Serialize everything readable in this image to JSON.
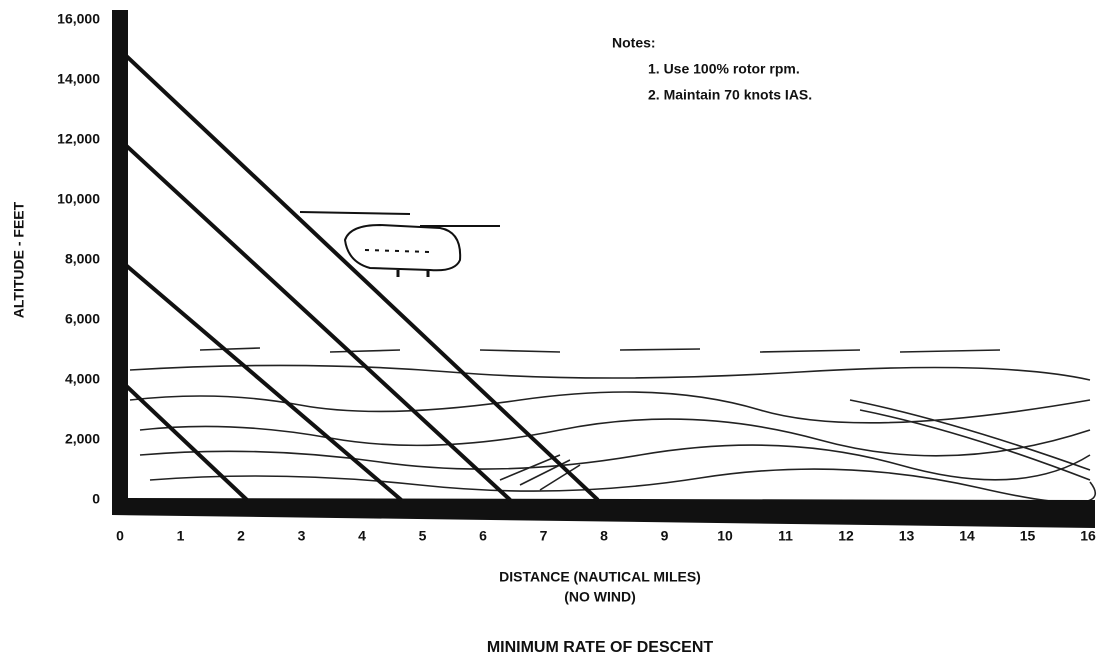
{
  "chart_data": {
    "type": "line",
    "title": "MINIMUM RATE OF DESCENT",
    "xlabel": "DISTANCE (NAUTICAL MILES)",
    "xlabel_note": "(NO WIND)",
    "ylabel": "ALTITUDE - FEET",
    "notes_title": "Notes:",
    "notes": [
      "1.  Use 100% rotor rpm.",
      "2.  Maintain 70 knots IAS."
    ],
    "xlim": [
      0,
      16
    ],
    "ylim": [
      0,
      16000
    ],
    "xticks": [
      0,
      1,
      2,
      3,
      4,
      5,
      6,
      7,
      8,
      9,
      10,
      11,
      12,
      13,
      14,
      15,
      16
    ],
    "yticks": [
      0,
      {
        "value": 2000,
        "label": "2,000"
      },
      {
        "value": 4000,
        "label": "4,000"
      },
      {
        "value": 6000,
        "label": "6,000"
      },
      {
        "value": 8000,
        "label": "8,000"
      },
      {
        "value": 10000,
        "label": "10,000"
      },
      {
        "value": 12000,
        "label": "12,000"
      },
      {
        "value": 14000,
        "label": "14,000"
      },
      {
        "value": 16000,
        "label": "16,000"
      }
    ],
    "grid": false,
    "series": [
      {
        "color": "#111111",
        "x": [
          0,
          7.9
        ],
        "values": [
          15000,
          0
        ]
      },
      {
        "color": "#111111",
        "x": [
          0,
          6.45
        ],
        "values": [
          12000,
          0
        ]
      },
      {
        "color": "#111111",
        "x": [
          0,
          4.65
        ],
        "values": [
          8000,
          0
        ]
      },
      {
        "color": "#111111",
        "x": [
          0,
          2.1
        ],
        "values": [
          4000,
          0
        ]
      }
    ]
  }
}
